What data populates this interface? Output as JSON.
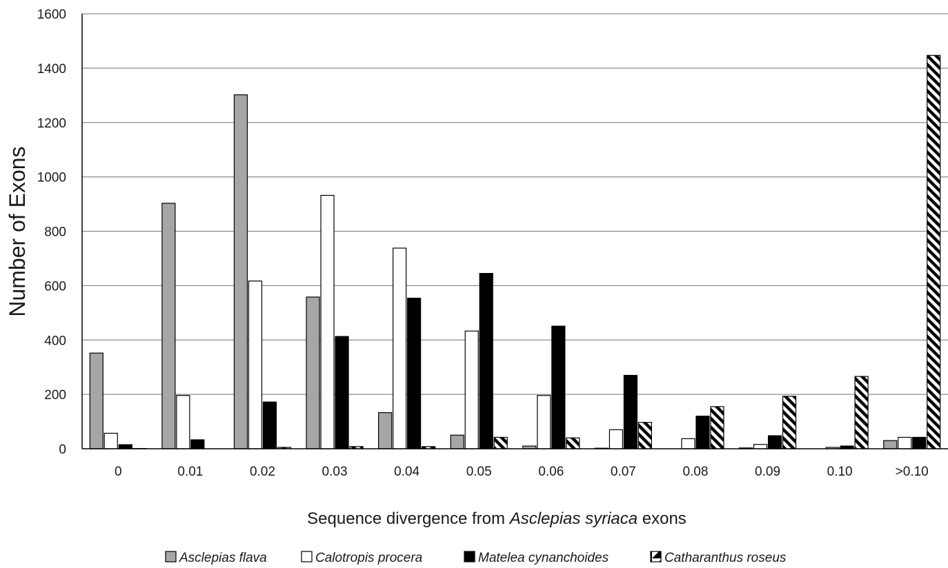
{
  "chart_data": {
    "type": "bar",
    "title": "",
    "xlabel_prefix": "Sequence divergence from ",
    "xlabel_species": "Asclepias syriaca",
    "xlabel_suffix": " exons",
    "ylabel": "Number of Exons",
    "ylim": [
      0,
      1600
    ],
    "yticks": [
      0,
      200,
      400,
      600,
      800,
      1000,
      1200,
      1400,
      1600
    ],
    "grid": true,
    "legend_position": "bottom",
    "categories": [
      "0",
      "0.01",
      "0.02",
      "0.03",
      "0.04",
      "0.05",
      "0.06",
      "0.07",
      "0.08",
      "0.09",
      "0.10",
      ">0.10"
    ],
    "series": [
      {
        "name": "Asclepias flava",
        "fill": "#a6a6a6",
        "pattern": "solid",
        "values": [
          352,
          903,
          1302,
          558,
          133,
          50,
          10,
          2,
          0,
          3,
          0,
          30
        ]
      },
      {
        "name": "Calotropis procera",
        "fill": "#ffffff",
        "pattern": "solid",
        "values": [
          57,
          196,
          617,
          932,
          738,
          433,
          196,
          70,
          37,
          16,
          5,
          42
        ]
      },
      {
        "name": "Matelea cynanchoides",
        "fill": "#000000",
        "pattern": "solid",
        "values": [
          15,
          33,
          172,
          413,
          554,
          645,
          451,
          270,
          120,
          48,
          10,
          42
        ]
      },
      {
        "name": "Catharanthus roseus",
        "fill": "#ffffff",
        "pattern": "diagonal-stripe",
        "values": [
          1,
          0,
          5,
          8,
          8,
          42,
          40,
          97,
          155,
          193,
          266,
          1447
        ]
      }
    ]
  }
}
